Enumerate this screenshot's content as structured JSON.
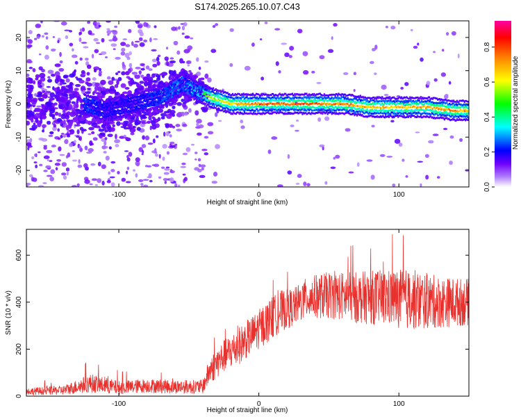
{
  "title": "S174.2025.265.10.07.C43",
  "chart_data": [
    {
      "type": "heatmap",
      "title": "S174.2025.265.10.07.C43",
      "xlabel": "Height of straight line (km)",
      "ylabel": "Frequency (Hz)",
      "xlim": [
        -166,
        150
      ],
      "ylim": [
        -25,
        25
      ],
      "xticks": [
        -100,
        0,
        100
      ],
      "yticks": [
        -20,
        -10,
        0,
        10,
        20
      ],
      "xtick_labels": [
        "-100",
        "0",
        "100"
      ],
      "ytick_labels": [
        "-20",
        "-10",
        "0",
        "10",
        "20"
      ],
      "colorbar": {
        "label": "Normalized spectral amplitude",
        "range": [
          0,
          0.95
        ],
        "ticks": [
          0.0,
          0.2,
          0.4,
          0.6,
          0.8
        ],
        "tick_labels": [
          "0.0",
          "0.2",
          "0.4",
          "0.6",
          "0.8"
        ],
        "colors": [
          "#ffffff",
          "#8000ff",
          "#0000ff",
          "#00ffff",
          "#00ff00",
          "#ffff00",
          "#ff8000",
          "#ff0000",
          "#ff00a0"
        ]
      },
      "ridge": {
        "description_points_x": [
          -125,
          -110,
          -90,
          -70,
          -55,
          -45,
          -35,
          -20,
          0,
          20,
          40,
          60,
          80,
          100,
          120,
          140,
          150
        ],
        "description_points_y": [
          0,
          -2,
          0,
          2,
          6,
          4,
          2,
          0,
          0,
          0,
          0,
          0,
          -1,
          -1,
          -1,
          -2,
          -2
        ],
        "peak_amplitude": [
          0.25,
          0.2,
          0.2,
          0.25,
          0.3,
          0.45,
          0.6,
          0.7,
          0.85,
          0.85,
          0.85,
          0.8,
          0.75,
          0.75,
          0.75,
          0.8,
          0.75
        ]
      }
    },
    {
      "type": "line",
      "xlabel": "Height of straight line (km)",
      "ylabel": "SNR (10 * v/v)",
      "xlim": [
        -166,
        150
      ],
      "ylim": [
        0,
        710
      ],
      "xticks": [
        -100,
        0,
        100
      ],
      "yticks": [
        0,
        200,
        400,
        600
      ],
      "xtick_labels": [
        "-100",
        "0",
        "100"
      ],
      "ytick_labels": [
        "0",
        "200",
        "400",
        "600"
      ],
      "series": [
        {
          "name": "SNR",
          "color": "#e8302c",
          "envelope_x": [
            -166,
            -140,
            -120,
            -100,
            -80,
            -60,
            -40,
            -35,
            -25,
            -15,
            -5,
            5,
            15,
            25,
            35,
            50,
            70,
            90,
            110,
            130,
            150
          ],
          "envelope_mean": [
            20,
            25,
            55,
            35,
            45,
            40,
            40,
            110,
            170,
            210,
            260,
            310,
            360,
            380,
            420,
            430,
            420,
            420,
            410,
            400,
            400
          ],
          "envelope_spread": [
            15,
            20,
            40,
            30,
            30,
            30,
            30,
            60,
            70,
            80,
            80,
            90,
            90,
            80,
            90,
            100,
            110,
            120,
            130,
            110,
            100
          ]
        }
      ]
    }
  ]
}
